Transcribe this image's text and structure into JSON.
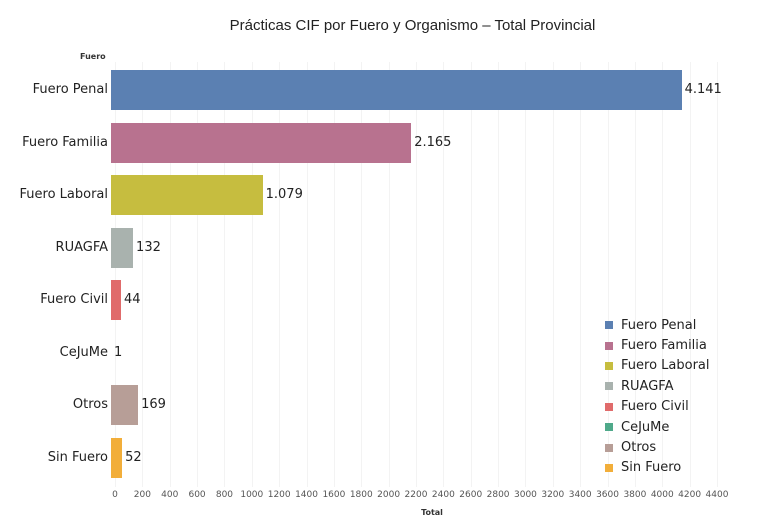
{
  "chart_data": {
    "type": "bar",
    "orientation": "horizontal",
    "title": "Prácticas CIF por Fuero y Organismo – Total Provincial",
    "row_header": "Fuero",
    "xlabel": "Total",
    "ylabel": "Fuero",
    "xlim": [
      0,
      4400
    ],
    "grid": true,
    "legend_position": "bottom-right",
    "x_ticks": [
      "0",
      "200",
      "400",
      "600",
      "800",
      "1000",
      "1200",
      "1400",
      "1600",
      "1800",
      "2000",
      "2200",
      "2400",
      "2600",
      "2800",
      "3000",
      "3200",
      "3400",
      "3600",
      "3800",
      "4000",
      "4200",
      "4400"
    ],
    "categories": [
      "Fuero Penal",
      "Fuero Familia",
      "Fuero Laboral",
      "RUAGFA",
      "Fuero Civil",
      "CeJuMe",
      "Otros",
      "Sin Fuero"
    ],
    "values": [
      4141,
      2165,
      1079,
      132,
      44,
      1,
      169,
      52
    ],
    "value_labels": [
      "4.141",
      "2.165",
      "1.079",
      "132",
      "44",
      "1",
      "169",
      "52"
    ],
    "colors": [
      "#5B80B2",
      "#B8728F",
      "#C6BD3F",
      "#A9B2AE",
      "#E06B6B",
      "#4FA98A",
      "#B79E97",
      "#F2AE3A"
    ],
    "legend": [
      "Fuero Penal",
      "Fuero Familia",
      "Fuero Laboral",
      "RUAGFA",
      "Fuero Civil",
      "CeJuMe",
      "Otros",
      "Sin Fuero"
    ]
  }
}
